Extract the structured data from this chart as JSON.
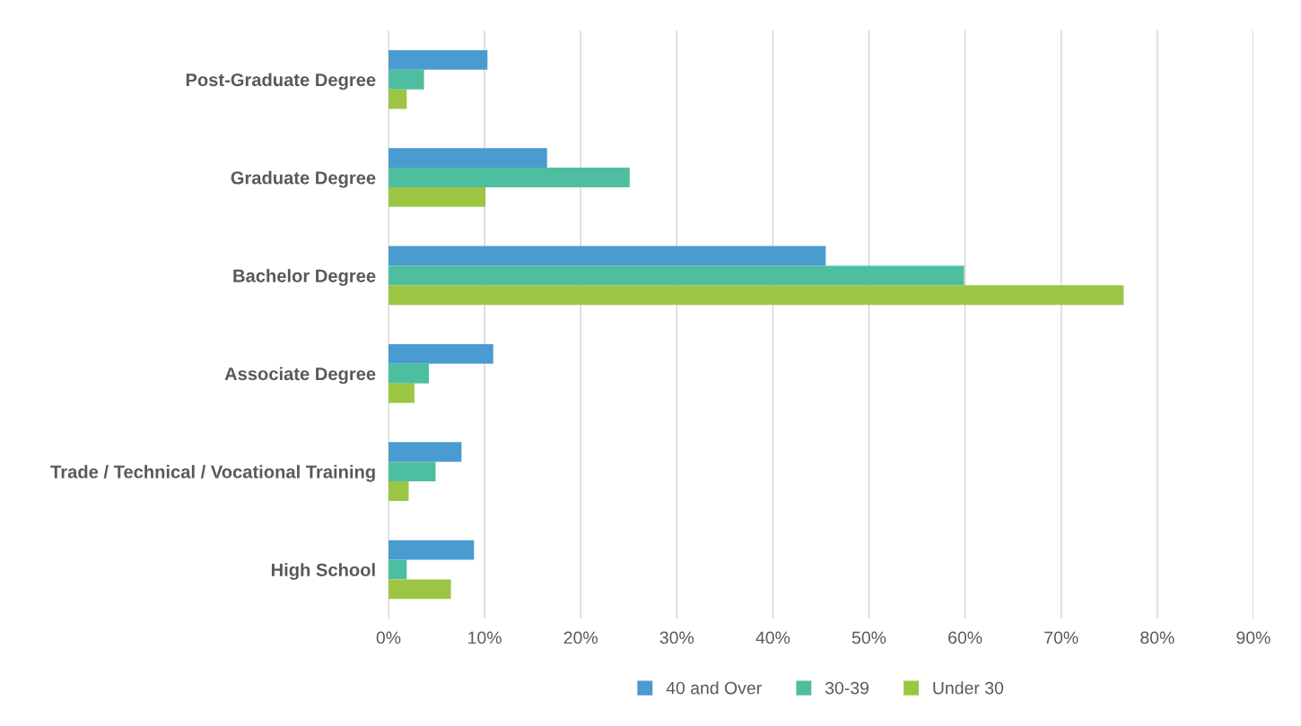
{
  "chart_data": {
    "type": "bar",
    "orientation": "horizontal",
    "categories": [
      "Post-Graduate Degree",
      "Graduate Degree",
      "Bachelor Degree",
      "Associate Degree",
      "Trade / Technical / Vocational Training",
      "High School"
    ],
    "series": [
      {
        "name": "40 and Over",
        "color": "#4a9bd0",
        "values": [
          10.3,
          16.5,
          45.5,
          10.9,
          7.6,
          8.9
        ]
      },
      {
        "name": "30-39",
        "color": "#4dbfa0",
        "values": [
          3.7,
          25.1,
          59.9,
          4.2,
          4.9,
          1.9
        ]
      },
      {
        "name": "Under 30",
        "color": "#9dc544",
        "values": [
          1.9,
          10.1,
          76.5,
          2.7,
          2.1,
          6.5
        ]
      }
    ],
    "xlim": [
      0,
      90
    ],
    "xticks": [
      {
        "value": 0,
        "label": "0%"
      },
      {
        "value": 10,
        "label": "10%"
      },
      {
        "value": 20,
        "label": "20%"
      },
      {
        "value": 30,
        "label": "30%"
      },
      {
        "value": 40,
        "label": "40%"
      },
      {
        "value": 50,
        "label": "50%"
      },
      {
        "value": 60,
        "label": "60%"
      },
      {
        "value": 70,
        "label": "70%"
      },
      {
        "value": 80,
        "label": "80%"
      },
      {
        "value": 90,
        "label": "90%"
      }
    ],
    "grid": "x",
    "legend": "bottom"
  }
}
